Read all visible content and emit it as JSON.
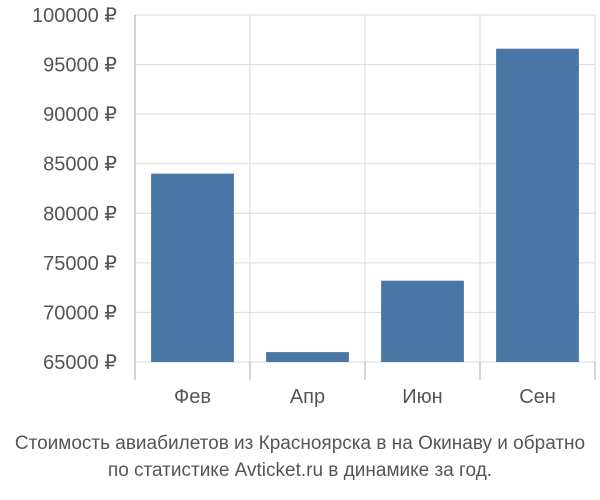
{
  "chart_data": {
    "type": "bar",
    "categories": [
      "Фев",
      "Апр",
      "Июн",
      "Сен"
    ],
    "values": [
      84000,
      66000,
      73200,
      96600
    ],
    "ylim": [
      65000,
      100000
    ],
    "yticks": [
      65000,
      70000,
      75000,
      80000,
      85000,
      90000,
      95000,
      100000
    ],
    "tick_labels": [
      "65000 ₽",
      "70000 ₽",
      "75000 ₽",
      "80000 ₽",
      "85000 ₽",
      "90000 ₽",
      "95000 ₽",
      "100000 ₽"
    ],
    "grid": true,
    "legend": "none",
    "bar_color": "#4a76a6",
    "grid_color": "#d9d9d9",
    "axis_color": "#aaaaaa"
  },
  "caption": {
    "line1": "Стоимость авиабилетов из Красноярска в на Окинаву и обратно",
    "line2": "по статистике Avticket.ru в динамике за год."
  }
}
